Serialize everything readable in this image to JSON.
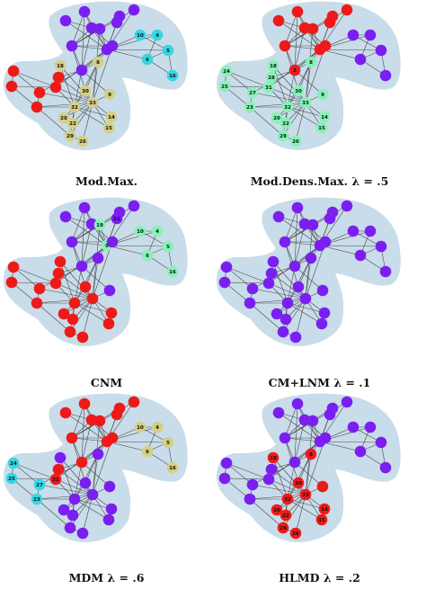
{
  "colors": {
    "purple": "#7a1ff0",
    "red": "#ee1a1a",
    "cyan": "#35d6e3",
    "khaki": "#d4cf86",
    "mint": "#86f2b6",
    "region": "#c9dcea"
  },
  "edges": [
    [
      0,
      1
    ],
    [
      0,
      2
    ],
    [
      0,
      3
    ],
    [
      0,
      4
    ],
    [
      0,
      5
    ],
    [
      0,
      6
    ],
    [
      0,
      7
    ],
    [
      0,
      8
    ],
    [
      0,
      10
    ],
    [
      0,
      11
    ],
    [
      0,
      12
    ],
    [
      0,
      13
    ],
    [
      0,
      17
    ],
    [
      0,
      19
    ],
    [
      0,
      21
    ],
    [
      0,
      31
    ],
    [
      1,
      2
    ],
    [
      1,
      3
    ],
    [
      1,
      7
    ],
    [
      1,
      13
    ],
    [
      1,
      17
    ],
    [
      1,
      19
    ],
    [
      1,
      21
    ],
    [
      1,
      30
    ],
    [
      2,
      3
    ],
    [
      2,
      7
    ],
    [
      2,
      8
    ],
    [
      2,
      9
    ],
    [
      2,
      13
    ],
    [
      2,
      27
    ],
    [
      2,
      28
    ],
    [
      2,
      32
    ],
    [
      3,
      7
    ],
    [
      3,
      12
    ],
    [
      3,
      13
    ],
    [
      4,
      6
    ],
    [
      4,
      10
    ],
    [
      5,
      6
    ],
    [
      5,
      10
    ],
    [
      5,
      16
    ],
    [
      6,
      16
    ],
    [
      8,
      30
    ],
    [
      8,
      32
    ],
    [
      8,
      33
    ],
    [
      9,
      33
    ],
    [
      13,
      33
    ],
    [
      14,
      32
    ],
    [
      14,
      33
    ],
    [
      15,
      32
    ],
    [
      15,
      33
    ],
    [
      18,
      32
    ],
    [
      18,
      33
    ],
    [
      19,
      33
    ],
    [
      20,
      32
    ],
    [
      20,
      33
    ],
    [
      22,
      32
    ],
    [
      22,
      33
    ],
    [
      23,
      25
    ],
    [
      23,
      27
    ],
    [
      23,
      29
    ],
    [
      23,
      32
    ],
    [
      23,
      33
    ],
    [
      24,
      25
    ],
    [
      24,
      27
    ],
    [
      24,
      31
    ],
    [
      25,
      31
    ],
    [
      26,
      29
    ],
    [
      26,
      33
    ],
    [
      27,
      33
    ],
    [
      28,
      31
    ],
    [
      28,
      33
    ],
    [
      29,
      32
    ],
    [
      29,
      33
    ],
    [
      30,
      32
    ],
    [
      30,
      33
    ],
    [
      31,
      32
    ],
    [
      31,
      33
    ],
    [
      32,
      33
    ]
  ],
  "panels": [
    {
      "caption": "Mod.Max.",
      "communities": [
        {
          "color": "purple",
          "members": [
            0,
            1,
            2,
            3,
            7,
            11,
            12,
            13,
            17,
            19,
            21
          ]
        },
        {
          "color": "cyan",
          "members": [
            4,
            5,
            6,
            10,
            16
          ]
        },
        {
          "color": "red",
          "members": [
            23,
            24,
            25,
            27,
            28,
            31
          ]
        },
        {
          "color": "khaki",
          "members": [
            8,
            9,
            14,
            15,
            18,
            20,
            22,
            26,
            29,
            30,
            32,
            33
          ]
        }
      ],
      "labels": [
        {
          "node": 4,
          "text": "4"
        },
        {
          "node": 5,
          "text": "5"
        },
        {
          "node": 6,
          "text": "6"
        },
        {
          "node": 10,
          "text": "10"
        },
        {
          "node": 16,
          "text": "16"
        },
        {
          "node": 8,
          "text": "8"
        },
        {
          "node": 9,
          "text": "9"
        },
        {
          "node": 14,
          "text": "14"
        },
        {
          "node": 15,
          "text": "15"
        },
        {
          "node": 20,
          "text": "20"
        },
        {
          "node": 22,
          "text": "22"
        },
        {
          "node": 26,
          "text": "26"
        },
        {
          "node": 29,
          "text": "29"
        },
        {
          "node": 30,
          "text": "30"
        },
        {
          "node": 32,
          "text": "32"
        },
        {
          "node": 33,
          "text": "33"
        },
        {
          "node": 18,
          "text": "18"
        }
      ]
    },
    {
      "caption": "Mod.Dens.Max. λ = .5",
      "communities": [
        {
          "color": "red",
          "members": [
            0,
            1,
            2,
            3,
            7,
            11,
            12,
            13,
            17,
            19,
            21
          ]
        },
        {
          "color": "purple",
          "members": [
            4,
            5,
            6,
            10,
            16
          ]
        },
        {
          "color": "mint",
          "members": [
            8,
            9,
            14,
            15,
            18,
            20,
            22,
            23,
            24,
            25,
            26,
            27,
            28,
            29,
            30,
            31,
            32,
            33
          ]
        }
      ],
      "labels": [
        {
          "node": 24,
          "text": "24"
        },
        {
          "node": 25,
          "text": "25"
        },
        {
          "node": 27,
          "text": "27"
        },
        {
          "node": 28,
          "text": "28"
        },
        {
          "node": 23,
          "text": "23"
        },
        {
          "node": 31,
          "text": "31"
        },
        {
          "node": 8,
          "text": "8"
        },
        {
          "node": 9,
          "text": "9"
        },
        {
          "node": 14,
          "text": "14"
        },
        {
          "node": 15,
          "text": "15"
        },
        {
          "node": 20,
          "text": "20"
        },
        {
          "node": 22,
          "text": "22"
        },
        {
          "node": 26,
          "text": "26"
        },
        {
          "node": 29,
          "text": "29"
        },
        {
          "node": 30,
          "text": "30"
        },
        {
          "node": 32,
          "text": "32"
        },
        {
          "node": 33,
          "text": "33"
        },
        {
          "node": 18,
          "text": "18"
        },
        {
          "node": 2,
          "text": "2"
        }
      ]
    },
    {
      "caption": "CNM",
      "communities": [
        {
          "color": "purple",
          "members": [
            1,
            2,
            3,
            7,
            11,
            12,
            13,
            17,
            21,
            8,
            9
          ]
        },
        {
          "color": "mint",
          "members": [
            0,
            4,
            5,
            6,
            10,
            16,
            19
          ]
        },
        {
          "color": "red",
          "members": [
            14,
            15,
            18,
            20,
            22,
            23,
            24,
            25,
            26,
            27,
            28,
            29,
            30,
            31,
            32,
            33
          ]
        }
      ],
      "labels": [
        {
          "node": 0,
          "text": "0"
        },
        {
          "node": 4,
          "text": "4"
        },
        {
          "node": 5,
          "text": "5"
        },
        {
          "node": 6,
          "text": "6"
        },
        {
          "node": 10,
          "text": "10"
        },
        {
          "node": 11,
          "text": "11"
        },
        {
          "node": 16,
          "text": "16"
        },
        {
          "node": 19,
          "text": "19"
        }
      ]
    },
    {
      "caption": "CM+LNM λ = .1",
      "communities": [
        {
          "color": "purple",
          "members": [
            0,
            1,
            2,
            3,
            4,
            5,
            6,
            7,
            8,
            9,
            10,
            11,
            12,
            13,
            14,
            15,
            16,
            17,
            18,
            19,
            20,
            21,
            22,
            23,
            24,
            25,
            26,
            27,
            28,
            29,
            30,
            31,
            32,
            33
          ]
        }
      ],
      "labels": []
    },
    {
      "caption": "MDM λ = .6",
      "communities": [
        {
          "color": "red",
          "members": [
            0,
            1,
            2,
            3,
            7,
            11,
            12,
            13,
            17,
            19,
            21,
            28,
            31
          ]
        },
        {
          "color": "khaki",
          "members": [
            4,
            5,
            6,
            10,
            16
          ]
        },
        {
          "color": "cyan",
          "members": [
            23,
            24,
            25,
            27
          ]
        },
        {
          "color": "purple",
          "members": [
            8,
            9,
            14,
            15,
            18,
            20,
            22,
            26,
            29,
            30,
            32,
            33
          ]
        }
      ],
      "labels": [
        {
          "node": 4,
          "text": "4"
        },
        {
          "node": 5,
          "text": "5"
        },
        {
          "node": 6,
          "text": "6"
        },
        {
          "node": 10,
          "text": "10"
        },
        {
          "node": 16,
          "text": "16"
        },
        {
          "node": 24,
          "text": "24"
        },
        {
          "node": 25,
          "text": "25"
        },
        {
          "node": 27,
          "text": "27"
        },
        {
          "node": 23,
          "text": "23"
        },
        {
          "node": 31,
          "text": "31"
        }
      ]
    },
    {
      "caption": "HLMD λ = .2",
      "communities": [
        {
          "color": "purple",
          "members": [
            0,
            1,
            2,
            3,
            4,
            5,
            6,
            7,
            10,
            11,
            12,
            13,
            16,
            17,
            19,
            21,
            23,
            24,
            25,
            27,
            28,
            31
          ]
        },
        {
          "color": "red",
          "members": [
            8,
            9,
            14,
            15,
            18,
            20,
            22,
            26,
            29,
            30,
            32,
            33
          ]
        }
      ],
      "labels": [
        {
          "node": 8,
          "text": "8"
        },
        {
          "node": 14,
          "text": "14"
        },
        {
          "node": 15,
          "text": "15"
        },
        {
          "node": 18,
          "text": "18"
        },
        {
          "node": 20,
          "text": "20"
        },
        {
          "node": 26,
          "text": "26"
        },
        {
          "node": 29,
          "text": "29"
        },
        {
          "node": 30,
          "text": "30"
        },
        {
          "node": 32,
          "text": "32"
        },
        {
          "node": 33,
          "text": "33"
        },
        {
          "node": 22,
          "text": "22"
        }
      ]
    }
  ]
}
